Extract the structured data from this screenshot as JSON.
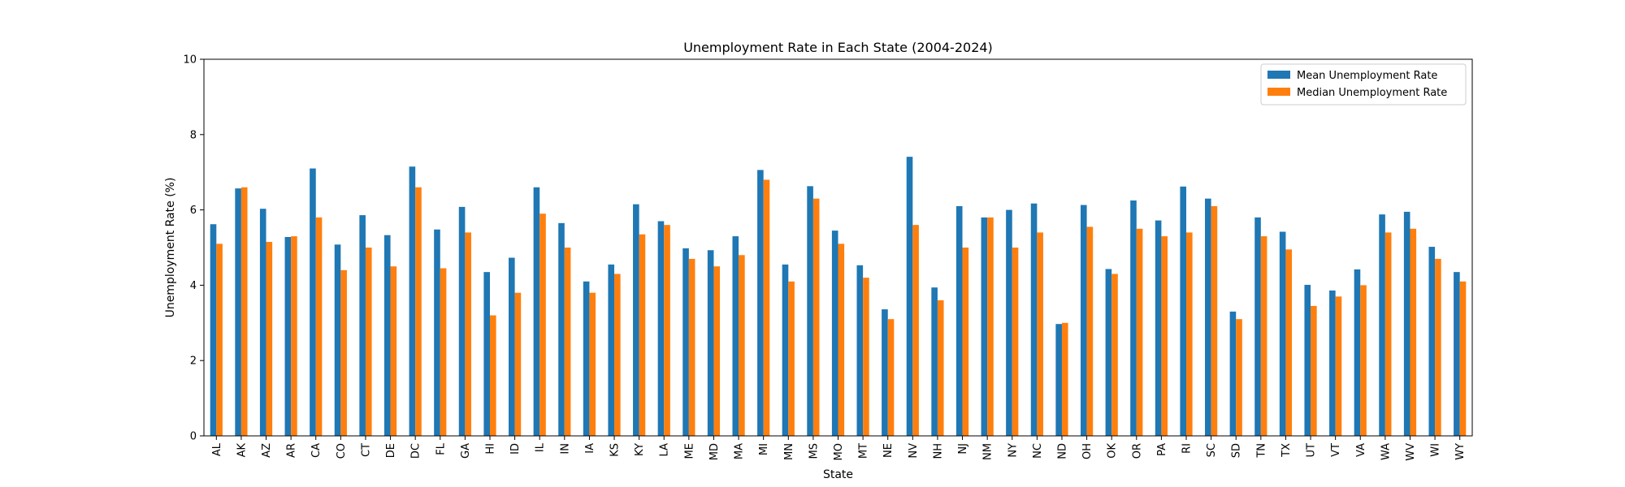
{
  "chart_data": {
    "type": "bar",
    "title": "Unemployment Rate in Each State (2004-2024)",
    "xlabel": "State",
    "ylabel": "Unemployment Rate (%)",
    "ylim": [
      0,
      10
    ],
    "yticks": [
      0,
      2,
      4,
      6,
      8,
      10
    ],
    "grid": false,
    "legend_position": "top-right",
    "categories": [
      "AL",
      "AK",
      "AZ",
      "AR",
      "CA",
      "CO",
      "CT",
      "DE",
      "DC",
      "FL",
      "GA",
      "HI",
      "ID",
      "IL",
      "IN",
      "IA",
      "KS",
      "KY",
      "LA",
      "ME",
      "MD",
      "MA",
      "MI",
      "MN",
      "MS",
      "MO",
      "MT",
      "NE",
      "NV",
      "NH",
      "NJ",
      "NM",
      "NY",
      "NC",
      "ND",
      "OH",
      "OK",
      "OR",
      "PA",
      "RI",
      "SC",
      "SD",
      "TN",
      "TX",
      "UT",
      "VT",
      "VA",
      "WA",
      "WV",
      "WI",
      "WY"
    ],
    "series": [
      {
        "name": "Mean Unemployment Rate",
        "color": "#1f77b4",
        "values": [
          5.62,
          6.57,
          6.03,
          5.28,
          7.1,
          5.08,
          5.86,
          5.33,
          7.15,
          5.48,
          6.08,
          4.35,
          4.73,
          6.6,
          5.65,
          4.1,
          4.55,
          6.15,
          5.7,
          4.98,
          4.93,
          5.3,
          7.06,
          4.55,
          6.63,
          5.45,
          4.53,
          3.36,
          7.41,
          3.94,
          6.1,
          5.8,
          6.0,
          6.17,
          2.97,
          6.13,
          4.43,
          6.25,
          5.72,
          6.62,
          6.3,
          3.3,
          5.8,
          5.42,
          4.01,
          3.86,
          4.42,
          5.88,
          5.95,
          5.02,
          4.35
        ]
      },
      {
        "name": "Median Unemployment Rate",
        "color": "#ff7f0e",
        "values": [
          5.1,
          6.6,
          5.15,
          5.3,
          5.8,
          4.4,
          5.0,
          4.5,
          6.6,
          4.45,
          5.4,
          3.2,
          3.8,
          5.9,
          5.0,
          3.8,
          4.3,
          5.35,
          5.6,
          4.7,
          4.5,
          4.8,
          6.8,
          4.1,
          6.3,
          5.1,
          4.2,
          3.1,
          5.6,
          3.6,
          5.0,
          5.8,
          5.0,
          5.4,
          3.0,
          5.55,
          4.3,
          5.5,
          5.3,
          5.4,
          6.1,
          3.1,
          5.3,
          4.95,
          3.45,
          3.7,
          4.0,
          5.4,
          5.5,
          4.7,
          4.1
        ]
      }
    ]
  }
}
